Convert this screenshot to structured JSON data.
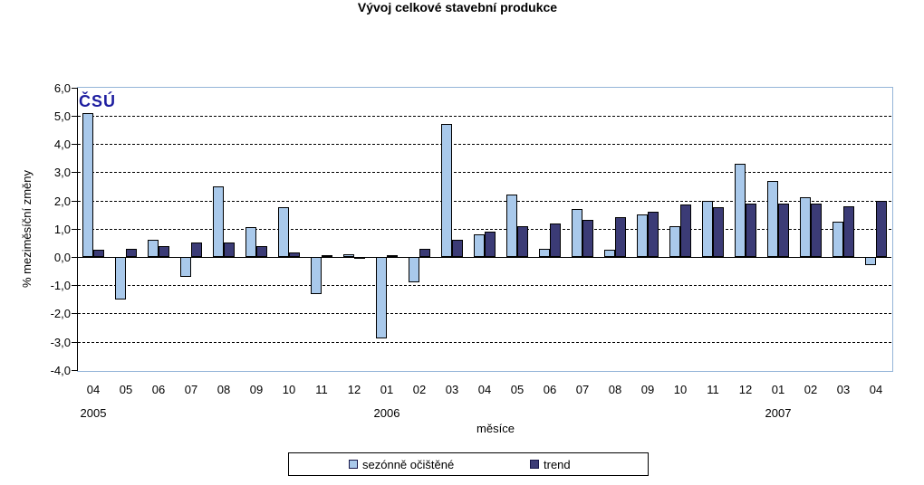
{
  "title": "Vývoj celkové stavební produkce",
  "logo_text": "ČSÚ",
  "colors": {
    "bar_seasonal": "#A9C9EB",
    "bar_trend": "#3B3B76",
    "plot_border": "#95B5D8",
    "logo": "#1E1EA0",
    "gridline": "#000000"
  },
  "chart_data": {
    "type": "bar",
    "title": "Vývoj celkové stavební produkce",
    "ylabel": "% meziměsíční změny",
    "xlabel": "měsíce",
    "ylim": [
      -4.0,
      6.0
    ],
    "grid": "horizontal-dashed",
    "legend_position": "bottom",
    "y_ticks": [
      6,
      5,
      4,
      3,
      2,
      1,
      0,
      -1,
      -2,
      -3,
      -4
    ],
    "y_tick_labels": [
      "6,0",
      "5,0",
      "4,0",
      "3,0",
      "2,0",
      "1,0",
      "0,0",
      "-1,0",
      "-2,0",
      "-3,0",
      "-4,0"
    ],
    "categories": [
      "04",
      "05",
      "06",
      "07",
      "08",
      "09",
      "10",
      "11",
      "12",
      "01",
      "02",
      "03",
      "04",
      "05",
      "06",
      "07",
      "08",
      "09",
      "10",
      "11",
      "12",
      "01",
      "02",
      "03",
      "04"
    ],
    "year_groups": [
      {
        "year": "2005",
        "at_index": 0
      },
      {
        "year": "2006",
        "at_index": 9
      },
      {
        "year": "2007",
        "at_index": 21
      }
    ],
    "series": [
      {
        "name": "sezónně očištěné",
        "color": "#A9C9EB",
        "values": [
          5.1,
          -1.5,
          0.6,
          -0.7,
          2.5,
          1.05,
          1.75,
          -1.3,
          0.1,
          -2.9,
          -0.9,
          4.7,
          0.8,
          2.2,
          0.3,
          1.7,
          0.25,
          1.5,
          1.1,
          2.0,
          3.3,
          2.7,
          2.1,
          1.25,
          -0.3
        ]
      },
      {
        "name": "trend",
        "color": "#3B3B76",
        "values": [
          0.25,
          0.3,
          0.4,
          0.5,
          0.5,
          0.4,
          0.15,
          0.05,
          -0.05,
          0.05,
          0.3,
          0.6,
          0.9,
          1.1,
          1.2,
          1.3,
          1.4,
          1.6,
          1.85,
          1.75,
          1.9,
          1.9,
          1.9,
          1.8,
          2.0
        ]
      }
    ]
  }
}
